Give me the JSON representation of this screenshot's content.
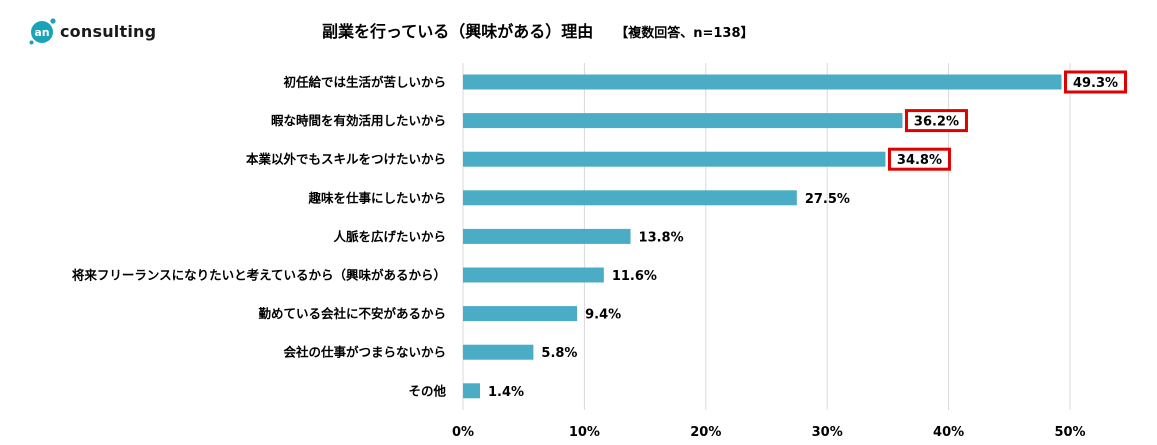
{
  "logo": {
    "badge": "an",
    "text": "consulting"
  },
  "chart_data": {
    "type": "bar",
    "orientation": "horizontal",
    "title": "副業を行っている（興味がある）理由",
    "subtitle": "【複数回答、n=138】",
    "categories": [
      "初任給では生活が苦しいから",
      "暇な時間を有効活用したいから",
      "本業以外でもスキルをつけたいから",
      "趣味を仕事にしたいから",
      "人脈を広げたいから",
      "将来フリーランスになりたいと考えているから（興味があるから）",
      "勤めている会社に不安があるから",
      "会社の仕事がつまらないから",
      "その他"
    ],
    "values": [
      49.3,
      36.2,
      34.8,
      27.5,
      13.8,
      11.6,
      9.4,
      5.8,
      1.4
    ],
    "value_labels": [
      "49.3%",
      "36.2%",
      "34.8%",
      "27.5%",
      "13.8%",
      "11.6%",
      "9.4%",
      "5.8%",
      "1.4%"
    ],
    "highlighted": [
      true,
      true,
      true,
      false,
      false,
      false,
      false,
      false,
      false
    ],
    "xlim": [
      0,
      50
    ],
    "xticks": [
      0,
      10,
      20,
      30,
      40,
      50
    ],
    "xtick_labels": [
      "0%",
      "10%",
      "20%",
      "30%",
      "40%",
      "50%"
    ],
    "grid": true,
    "colors": {
      "bar": "#4bacc6",
      "highlight_border": "#e00000",
      "grid": "#d9d9d9",
      "logo_accent": "#1aa3b8"
    }
  }
}
